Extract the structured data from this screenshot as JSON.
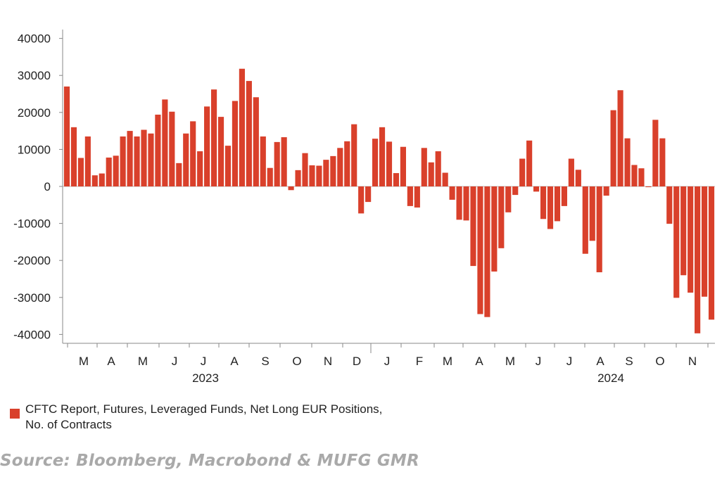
{
  "chart_data": {
    "type": "bar",
    "series": [
      {
        "name": "CFTC Report, Futures, Leveraged Funds, Net Long EUR Positions, No. of Contracts",
        "color": "#d9402b",
        "values": [
          27000,
          16000,
          7700,
          13500,
          3000,
          3500,
          7800,
          8300,
          13500,
          15000,
          13500,
          15300,
          14300,
          19400,
          23500,
          20200,
          6300,
          14300,
          17600,
          9500,
          21600,
          26200,
          18800,
          11000,
          23100,
          31800,
          28500,
          24100,
          13500,
          5000,
          12000,
          13300,
          -1000,
          4400,
          9000,
          5700,
          5600,
          7200,
          8200,
          10400,
          12200,
          16800,
          -7300,
          -4200,
          12900,
          16000,
          12100,
          3600,
          10700,
          -5300,
          -5700,
          10400,
          6500,
          9500,
          3700,
          -3600,
          -9000,
          -9200,
          -21500,
          -34500,
          -35300,
          -23000,
          -16700,
          -7000,
          -2300,
          7500,
          12400,
          -1400,
          -8800,
          -11500,
          -9400,
          -5300,
          7500,
          4500,
          -18200,
          -14700,
          -23200,
          -2500,
          20600,
          26000,
          13000,
          5800,
          4900,
          -200,
          18000,
          13000,
          -10100,
          -30100,
          -24000,
          -28700,
          -39700,
          -29800,
          -36000
        ]
      }
    ],
    "ylim": [
      -42000,
      42000
    ],
    "yticks": [
      40000,
      30000,
      20000,
      10000,
      0,
      -10000,
      -20000,
      -30000,
      -40000
    ],
    "x_month_labels": [
      "M",
      "A",
      "M",
      "J",
      "J",
      "A",
      "S",
      "O",
      "N",
      "D",
      "J",
      "F",
      "M",
      "A",
      "M",
      "J",
      "J",
      "A",
      "S",
      "O",
      "N"
    ],
    "x_year_labels": [
      "2023",
      "2024"
    ],
    "grid": false,
    "legend_position": "bottom-left"
  },
  "legend_label": "CFTC Report, Futures, Leveraged Funds, Net Long EUR Positions, No. of Contracts",
  "source": "Source: Bloomberg, Macrobond & MUFG GMR"
}
